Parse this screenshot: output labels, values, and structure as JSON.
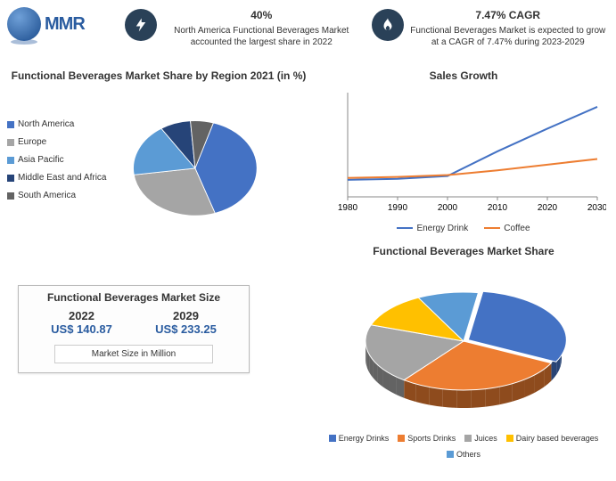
{
  "logo": {
    "text": "MMR"
  },
  "stats": {
    "left": {
      "big": "40%",
      "text": "North America Functional Beverages Market accounted the largest share in 2022"
    },
    "right": {
      "big": "7.47% CAGR",
      "text": "Functional Beverages Market is expected to grow at a CAGR of 7.47% during 2023-2029"
    }
  },
  "pie_region": {
    "title": "Functional Beverages Market Share by Region 2021 (in %)",
    "colors": {
      "na": "#4472c4",
      "eu": "#a5a5a5",
      "ap": "#5b9bd5",
      "mea": "#264478",
      "sa": "#636363"
    },
    "values": {
      "na": 40,
      "eu": 28,
      "ap": 18,
      "mea": 8,
      "sa": 6
    },
    "labels": {
      "na": "North America",
      "eu": "Europe",
      "ap": "Asia Pacific",
      "mea": "Middle East and Africa",
      "sa": "South America"
    }
  },
  "sales_growth": {
    "title": "Sales Growth",
    "x_ticks": [
      "1980",
      "1990",
      "2000",
      "2010",
      "2020",
      "2030"
    ],
    "energy": {
      "label": "Energy Drink",
      "color": "#4472c4",
      "points": [
        [
          0,
          18
        ],
        [
          1,
          19
        ],
        [
          2,
          22
        ],
        [
          3,
          48
        ],
        [
          4,
          72
        ],
        [
          5,
          95
        ]
      ]
    },
    "coffee": {
      "label": "Coffee",
      "color": "#ed7d31",
      "points": [
        [
          0,
          20
        ],
        [
          1,
          21
        ],
        [
          2,
          23
        ],
        [
          3,
          28
        ],
        [
          4,
          34
        ],
        [
          5,
          40
        ]
      ]
    },
    "ymax": 110
  },
  "market_size": {
    "title": "Functional Beverages Market Size",
    "y2022": "2022",
    "v2022": "US$ 140.87",
    "y2029": "2029",
    "v2029": "US$ 233.25",
    "footer": "Market Size in Million"
  },
  "pie_share": {
    "title": "Functional Beverages Market Share",
    "slices": [
      {
        "label": "Energy Drinks",
        "value": 30,
        "color": "#4472c4"
      },
      {
        "label": "Sports Drinks",
        "value": 28,
        "color": "#ed7d31"
      },
      {
        "label": "Juices",
        "value": 20,
        "color": "#a5a5a5"
      },
      {
        "label": "Dairy based beverages",
        "value": 12,
        "color": "#ffc000"
      },
      {
        "label": "Others",
        "value": 10,
        "color": "#5b9bd5"
      }
    ]
  }
}
